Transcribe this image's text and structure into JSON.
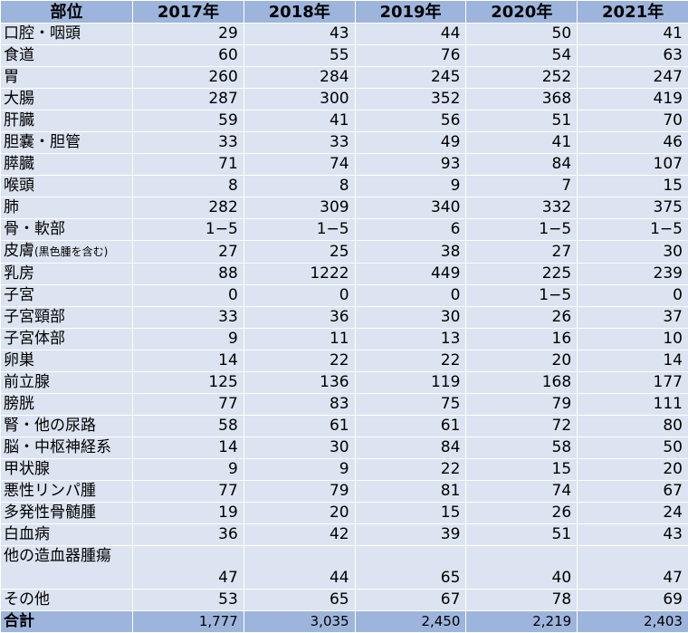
{
  "header": {
    "site": "部位",
    "years": [
      "2017年",
      "2018年",
      "2019年",
      "2020年",
      "2021年"
    ]
  },
  "rows": [
    {
      "site": "口腔・咽頭",
      "values": [
        "29",
        "43",
        "44",
        "50",
        "41"
      ]
    },
    {
      "site": "食道",
      "values": [
        "60",
        "55",
        "76",
        "54",
        "63"
      ]
    },
    {
      "site": "胃",
      "values": [
        "260",
        "284",
        "245",
        "252",
        "247"
      ]
    },
    {
      "site": "大腸",
      "values": [
        "287",
        "300",
        "352",
        "368",
        "419"
      ]
    },
    {
      "site": "肝臓",
      "values": [
        "59",
        "41",
        "56",
        "51",
        "70"
      ]
    },
    {
      "site": "胆嚢・胆管",
      "values": [
        "33",
        "33",
        "49",
        "41",
        "46"
      ]
    },
    {
      "site": "膵臓",
      "values": [
        "71",
        "74",
        "93",
        "84",
        "107"
      ]
    },
    {
      "site": "喉頭",
      "values": [
        "8",
        "8",
        "9",
        "7",
        "15"
      ]
    },
    {
      "site": "肺",
      "values": [
        "282",
        "309",
        "340",
        "332",
        "375"
      ]
    },
    {
      "site": "骨・軟部",
      "values": [
        "1−5",
        "1−5",
        "6",
        "1−5",
        "1−5"
      ]
    },
    {
      "site": "皮膚",
      "note": "(黒色腫を含む)",
      "values": [
        "27",
        "25",
        "38",
        "27",
        "30"
      ]
    },
    {
      "site": "乳房",
      "values": [
        "88",
        "1222",
        "449",
        "225",
        "239"
      ]
    },
    {
      "site": "子宮",
      "values": [
        "0",
        "0",
        "0",
        "1−5",
        "0"
      ]
    },
    {
      "site": "子宮頸部",
      "values": [
        "33",
        "36",
        "30",
        "26",
        "37"
      ]
    },
    {
      "site": "子宮体部",
      "values": [
        "9",
        "11",
        "13",
        "16",
        "10"
      ]
    },
    {
      "site": "卵巣",
      "values": [
        "14",
        "22",
        "22",
        "20",
        "14"
      ]
    },
    {
      "site": "前立腺",
      "values": [
        "125",
        "136",
        "119",
        "168",
        "177"
      ]
    },
    {
      "site": "膀胱",
      "values": [
        "77",
        "83",
        "75",
        "79",
        "111"
      ]
    },
    {
      "site": "腎・他の尿路",
      "values": [
        "58",
        "61",
        "61",
        "72",
        "80"
      ]
    },
    {
      "site": "脳・中枢神経系",
      "values": [
        "14",
        "30",
        "84",
        "58",
        "50"
      ]
    },
    {
      "site": "甲状腺",
      "values": [
        "9",
        "9",
        "22",
        "15",
        "20"
      ]
    },
    {
      "site": "悪性リンパ腫",
      "values": [
        "77",
        "79",
        "81",
        "74",
        "67"
      ]
    },
    {
      "site": "多発性骨髄腫",
      "values": [
        "19",
        "20",
        "15",
        "26",
        "24"
      ]
    },
    {
      "site": "白血病",
      "values": [
        "36",
        "42",
        "39",
        "51",
        "43"
      ]
    },
    {
      "site": "他の造血器腫瘍",
      "tall": true,
      "values": [
        "47",
        "44",
        "65",
        "40",
        "47"
      ]
    },
    {
      "site": "その他",
      "values": [
        "53",
        "65",
        "67",
        "78",
        "69"
      ]
    }
  ],
  "total": {
    "label": "合計",
    "values": [
      "1,777",
      "3,035",
      "2,450",
      "2,219",
      "2,403"
    ]
  },
  "colors": {
    "header_bg": "#9db5dc",
    "cell_bg": "#dbe4f0",
    "grid": "#ffffff"
  }
}
